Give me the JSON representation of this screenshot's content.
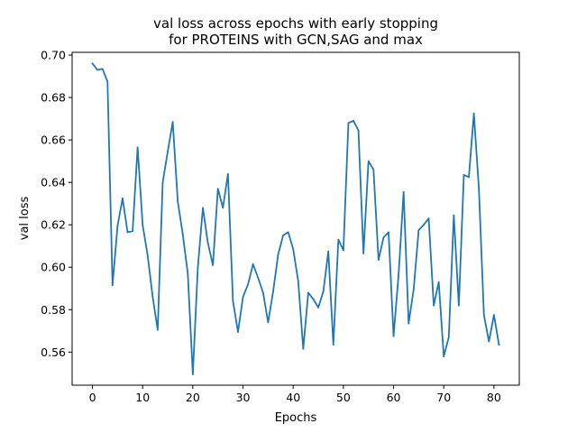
{
  "chart_data": {
    "type": "line",
    "title": "val loss across epochs with early stopping\nfor PROTEINS with GCN,SAG and max",
    "title_lines": [
      "val loss across epochs with early stopping",
      "for PROTEINS with GCN,SAG and max"
    ],
    "xlabel": "Epochs",
    "ylabel": "val loss",
    "xlim": [
      -4.05,
      85.05
    ],
    "ylim": [
      0.5444,
      0.7013
    ],
    "xticks": [
      0,
      10,
      20,
      30,
      40,
      50,
      60,
      70,
      80
    ],
    "xtick_labels": [
      "0",
      "10",
      "20",
      "30",
      "40",
      "50",
      "60",
      "70",
      "80"
    ],
    "yticks": [
      0.56,
      0.58,
      0.6,
      0.62,
      0.64,
      0.66,
      0.68,
      0.7
    ],
    "ytick_labels": [
      "0.56",
      "0.58",
      "0.60",
      "0.62",
      "0.64",
      "0.66",
      "0.68",
      "0.70"
    ],
    "grid": false,
    "series": [
      {
        "color": "#1f77b4",
        "x": [
          0,
          1,
          2,
          3,
          4,
          5,
          6,
          7,
          8,
          9,
          10,
          11,
          12,
          13,
          14,
          15,
          16,
          17,
          18,
          19,
          20,
          21,
          22,
          23,
          24,
          25,
          26,
          27,
          28,
          29,
          30,
          31,
          32,
          33,
          34,
          35,
          36,
          37,
          38,
          39,
          40,
          41,
          42,
          43,
          44,
          45,
          46,
          47,
          48,
          49,
          50,
          51,
          52,
          53,
          54,
          55,
          56,
          57,
          58,
          59,
          60,
          61,
          62,
          63,
          64,
          65,
          66,
          67,
          68,
          69,
          70,
          71,
          72,
          73,
          74,
          75,
          76,
          77,
          78,
          79,
          80,
          81
        ],
        "values": [
          0.696,
          0.693,
          0.6935,
          0.6875,
          0.5915,
          0.6195,
          0.6325,
          0.6165,
          0.617,
          0.6565,
          0.62,
          0.6055,
          0.586,
          0.5705,
          0.64,
          0.6545,
          0.6685,
          0.631,
          0.6155,
          0.597,
          0.5495,
          0.6,
          0.628,
          0.6115,
          0.601,
          0.637,
          0.628,
          0.644,
          0.584,
          0.5695,
          0.586,
          0.592,
          0.6015,
          0.595,
          0.588,
          0.574,
          0.5885,
          0.606,
          0.615,
          0.6165,
          0.6085,
          0.5935,
          0.5615,
          0.588,
          0.585,
          0.581,
          0.5885,
          0.6075,
          0.5635,
          0.613,
          0.608,
          0.668,
          0.669,
          0.6645,
          0.6065,
          0.65,
          0.646,
          0.6035,
          0.614,
          0.6165,
          0.5675,
          0.5965,
          0.6355,
          0.5735,
          0.5895,
          0.6175,
          0.62,
          0.623,
          0.582,
          0.593,
          0.558,
          0.567,
          0.6245,
          0.582,
          0.6435,
          0.6425,
          0.6725,
          0.637,
          0.5775,
          0.565,
          0.5775,
          0.5635
        ]
      }
    ]
  }
}
